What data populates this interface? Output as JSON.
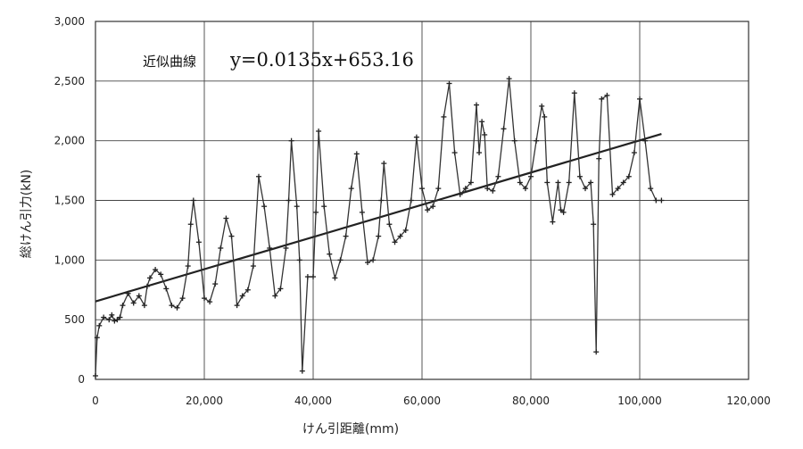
{
  "chart_data": {
    "type": "line",
    "xlabel": "けん引距離(mm)",
    "ylabel": "総けん引力(kN)",
    "xlim": [
      0,
      120000
    ],
    "ylim": [
      0,
      3000
    ],
    "x_ticks": [
      0,
      20000,
      40000,
      60000,
      80000,
      100000,
      120000
    ],
    "x_tick_labels": [
      "0",
      "20,000",
      "40,000",
      "60,000",
      "80,000",
      "100,000",
      "120,000"
    ],
    "y_ticks": [
      0,
      500,
      1000,
      1500,
      2000,
      2500,
      3000
    ],
    "y_tick_labels": [
      "0",
      "500",
      "1,000",
      "1,500",
      "2,000",
      "2,500",
      "3,000"
    ],
    "grid": true,
    "annotation": {
      "label": "近似曲線",
      "equation": "y=0.0135x+653.16"
    },
    "trendline": {
      "slope": 0.0135,
      "intercept": 653.16,
      "x_range": [
        0,
        104000
      ]
    },
    "series": [
      {
        "x": [
          0,
          300,
          700,
          1500,
          2500,
          3000,
          3500,
          4000,
          4500,
          5000,
          6000,
          7000,
          8000,
          9000,
          9500,
          10000,
          11000,
          12000,
          13000,
          14000,
          15000,
          16000,
          17000,
          17500,
          18000,
          19000,
          20000,
          21000,
          22000,
          23000,
          24000,
          25000,
          26000,
          27000,
          28000,
          29000,
          30000,
          31000,
          32000,
          33000,
          34000,
          35000,
          35500,
          36000,
          37000,
          37500,
          38000,
          39000,
          40000,
          40500,
          41000,
          42000,
          43000,
          44000,
          45000,
          46000,
          47000,
          48000,
          49000,
          50000,
          51000,
          52000,
          52500,
          53000,
          54000,
          55000,
          56000,
          57000,
          58000,
          59000,
          60000,
          61000,
          62000,
          63000,
          64000,
          65000,
          66000,
          67000,
          68000,
          69000,
          70000,
          70500,
          71000,
          71500,
          72000,
          73000,
          74000,
          75000,
          76000,
          77000,
          78000,
          79000,
          80000,
          81000,
          82000,
          82500,
          83000,
          84000,
          85000,
          85500,
          86000,
          87000,
          88000,
          89000,
          90000,
          91000,
          91500,
          92000,
          92500,
          93000,
          94000,
          95000,
          96000,
          97000,
          98000,
          99000,
          100000,
          101000,
          102000,
          103000,
          104000
        ],
        "values": [
          30,
          350,
          450,
          520,
          500,
          540,
          490,
          500,
          520,
          620,
          720,
          640,
          700,
          620,
          780,
          850,
          920,
          880,
          760,
          620,
          600,
          680,
          950,
          1300,
          1500,
          1150,
          680,
          650,
          800,
          1100,
          1350,
          1200,
          620,
          700,
          750,
          950,
          1700,
          1450,
          1100,
          700,
          760,
          1100,
          1500,
          2000,
          1450,
          1000,
          70,
          860,
          860,
          1400,
          2080,
          1450,
          1050,
          850,
          1000,
          1200,
          1600,
          1890,
          1400,
          980,
          1000,
          1200,
          1500,
          1810,
          1300,
          1150,
          1200,
          1250,
          1500,
          2030,
          1600,
          1420,
          1450,
          1600,
          2200,
          2480,
          1900,
          1550,
          1600,
          1650,
          2300,
          1900,
          2160,
          2050,
          1600,
          1580,
          1700,
          2100,
          2520,
          2000,
          1650,
          1600,
          1700,
          2000,
          2290,
          2200,
          1650,
          1320,
          1650,
          1420,
          1400,
          1650,
          2400,
          1700,
          1600,
          1650,
          1300,
          230,
          1850,
          2350,
          2380,
          1550,
          1600,
          1650,
          1700,
          1900,
          2350,
          2000,
          1600,
          1500,
          1500
        ]
      }
    ]
  }
}
